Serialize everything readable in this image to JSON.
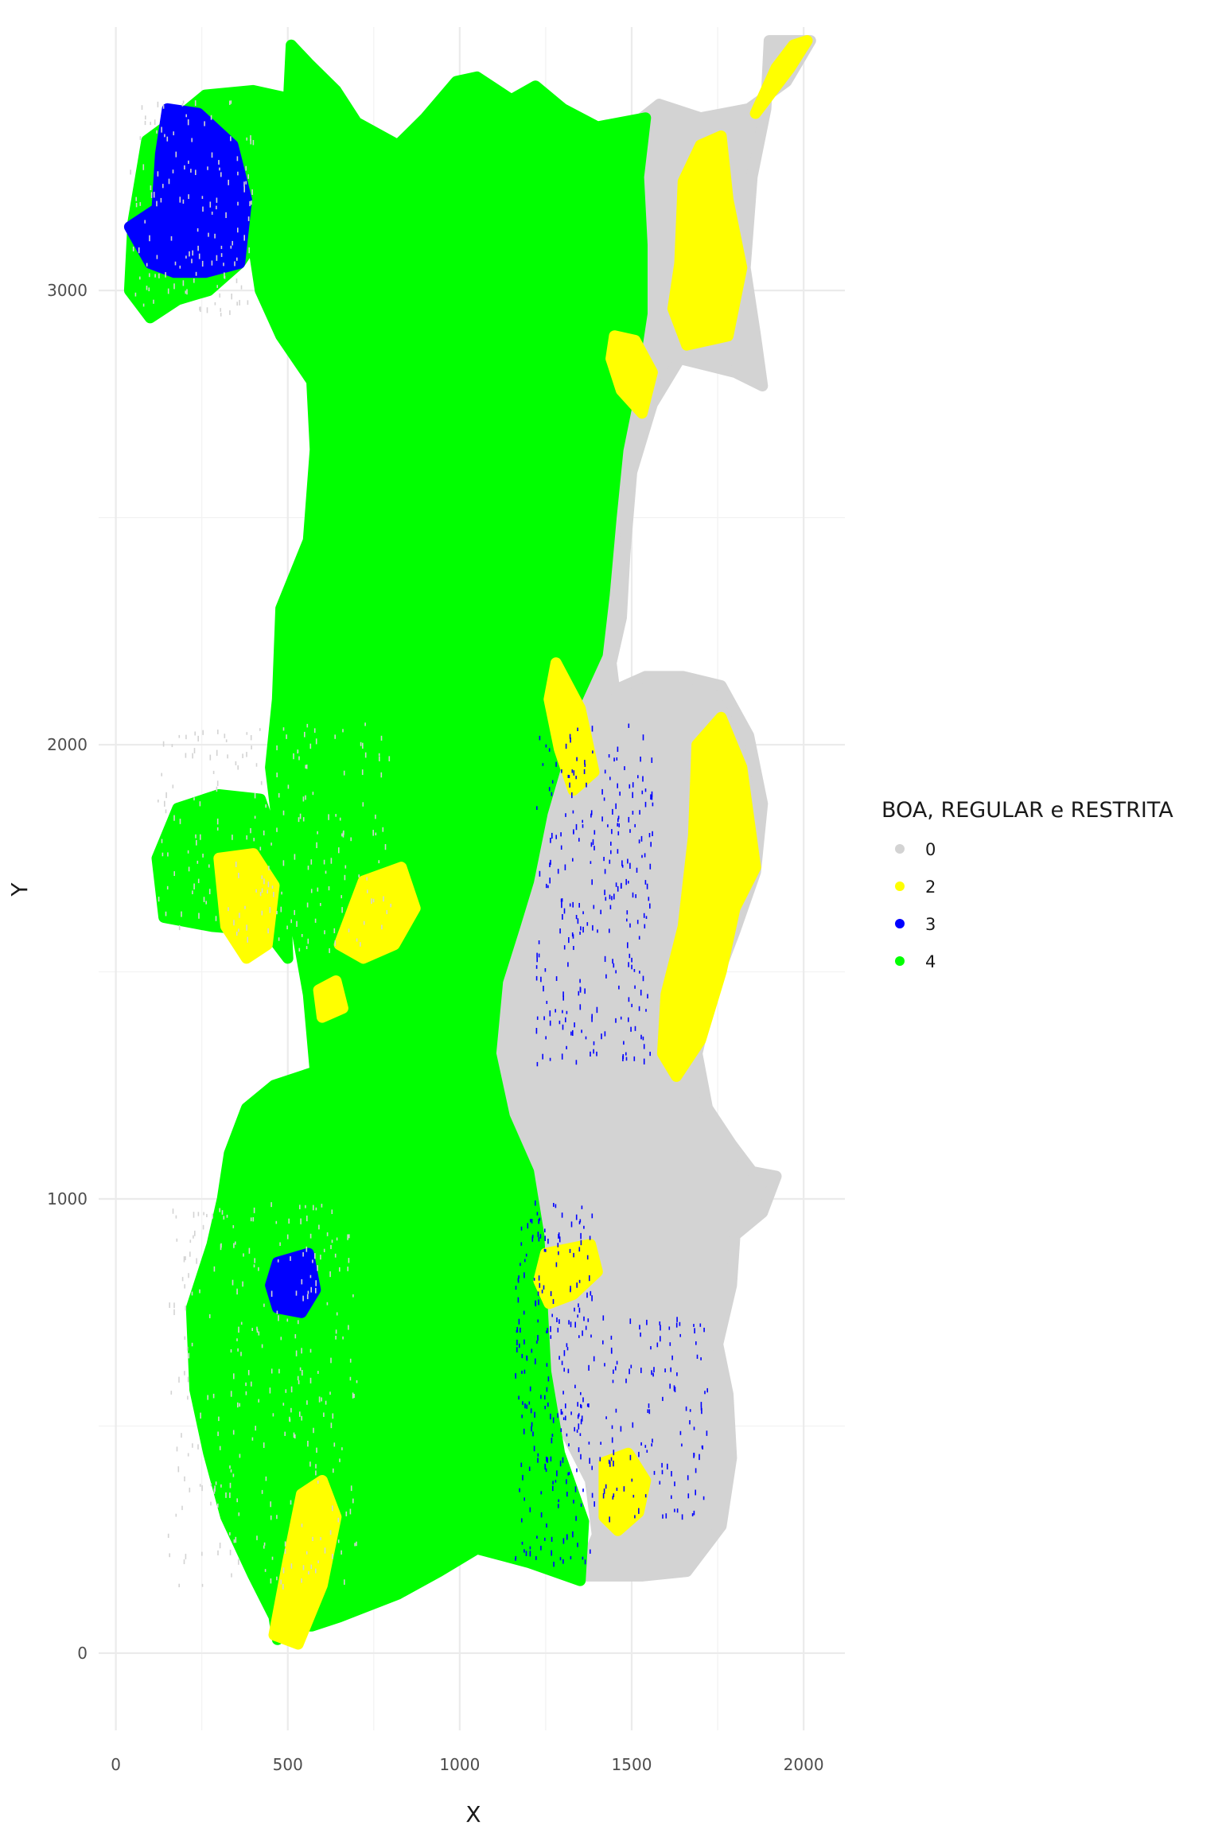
{
  "chart_data": {
    "type": "scatter",
    "title": "",
    "xlabel": "X",
    "ylabel": "Y",
    "xlim": [
      -50,
      2120
    ],
    "ylim": [
      -170,
      3580
    ],
    "x_ticks": [
      0,
      500,
      1000,
      1500,
      2000
    ],
    "y_ticks": [
      0,
      1000,
      2000,
      3000
    ],
    "grid": true,
    "legend": {
      "title": "BOA, REGULAR e RESTRITA",
      "position": "right",
      "entries": [
        {
          "label": "0",
          "color": "#d3d3d3"
        },
        {
          "label": "2",
          "color": "#ffff00"
        },
        {
          "label": "3",
          "color": "#0000ff"
        },
        {
          "label": "4",
          "color": "#00ff00"
        }
      ]
    },
    "regions": [
      {
        "class": "0",
        "name": "region-0-east",
        "points": [
          [
            1530,
            3380
          ],
          [
            1580,
            3410
          ],
          [
            1700,
            3380
          ],
          [
            1840,
            3400
          ],
          [
            1950,
            3460
          ],
          [
            2020,
            3550
          ],
          [
            1900,
            3550
          ],
          [
            1890,
            3400
          ],
          [
            1850,
            3250
          ],
          [
            1830,
            3050
          ],
          [
            1860,
            2900
          ],
          [
            1880,
            2790
          ],
          [
            1800,
            2820
          ],
          [
            1640,
            2850
          ],
          [
            1560,
            2750
          ],
          [
            1500,
            2600
          ],
          [
            1480,
            2420
          ],
          [
            1470,
            2280
          ],
          [
            1440,
            2180
          ],
          [
            1450,
            2120
          ],
          [
            1540,
            2150
          ],
          [
            1650,
            2150
          ],
          [
            1760,
            2130
          ],
          [
            1840,
            2020
          ],
          [
            1880,
            1870
          ],
          [
            1860,
            1720
          ],
          [
            1800,
            1590
          ],
          [
            1730,
            1450
          ],
          [
            1690,
            1320
          ],
          [
            1720,
            1200
          ],
          [
            1790,
            1120
          ],
          [
            1850,
            1060
          ],
          [
            1920,
            1050
          ],
          [
            1880,
            970
          ],
          [
            1800,
            920
          ],
          [
            1790,
            810
          ],
          [
            1750,
            680
          ],
          [
            1780,
            570
          ],
          [
            1790,
            430
          ],
          [
            1760,
            280
          ],
          [
            1660,
            180
          ],
          [
            1530,
            170
          ],
          [
            1420,
            170
          ],
          [
            1350,
            170
          ],
          [
            1400,
            260
          ],
          [
            1380,
            380
          ],
          [
            1300,
            500
          ],
          [
            1240,
            660
          ],
          [
            1200,
            800
          ],
          [
            1150,
            960
          ],
          [
            1080,
            1130
          ],
          [
            1060,
            1300
          ],
          [
            1100,
            1440
          ],
          [
            1140,
            1600
          ],
          [
            1200,
            1780
          ],
          [
            1250,
            1950
          ],
          [
            1290,
            2050
          ],
          [
            1380,
            2200
          ],
          [
            1420,
            2450
          ],
          [
            1450,
            2600
          ],
          [
            1480,
            2760
          ],
          [
            1500,
            3000
          ],
          [
            1490,
            3200
          ]
        ]
      },
      {
        "class": "4",
        "name": "region-4-main",
        "points": [
          [
            510,
            3540
          ],
          [
            560,
            3500
          ],
          [
            640,
            3440
          ],
          [
            700,
            3370
          ],
          [
            820,
            3320
          ],
          [
            900,
            3380
          ],
          [
            990,
            3460
          ],
          [
            1050,
            3470
          ],
          [
            1150,
            3420
          ],
          [
            1220,
            3450
          ],
          [
            1300,
            3400
          ],
          [
            1400,
            3360
          ],
          [
            1540,
            3380
          ],
          [
            1520,
            3250
          ],
          [
            1530,
            3100
          ],
          [
            1530,
            2950
          ],
          [
            1500,
            2800
          ],
          [
            1460,
            2650
          ],
          [
            1440,
            2500
          ],
          [
            1420,
            2330
          ],
          [
            1400,
            2200
          ],
          [
            1340,
            2100
          ],
          [
            1290,
            1980
          ],
          [
            1240,
            1850
          ],
          [
            1200,
            1700
          ],
          [
            1160,
            1600
          ],
          [
            1110,
            1480
          ],
          [
            1090,
            1320
          ],
          [
            1130,
            1180
          ],
          [
            1200,
            1060
          ],
          [
            1230,
            920
          ],
          [
            1240,
            760
          ],
          [
            1250,
            620
          ],
          [
            1290,
            440
          ],
          [
            1360,
            290
          ],
          [
            1350,
            160
          ],
          [
            1200,
            200
          ],
          [
            1050,
            230
          ],
          [
            940,
            180
          ],
          [
            820,
            130
          ],
          [
            650,
            80
          ],
          [
            570,
            60
          ],
          [
            500,
            60
          ],
          [
            470,
            30
          ],
          [
            460,
            80
          ],
          [
            400,
            170
          ],
          [
            320,
            300
          ],
          [
            270,
            440
          ],
          [
            230,
            580
          ],
          [
            220,
            760
          ],
          [
            280,
            900
          ],
          [
            310,
            1000
          ],
          [
            330,
            1100
          ],
          [
            380,
            1200
          ],
          [
            460,
            1250
          ],
          [
            580,
            1280
          ],
          [
            560,
            1450
          ],
          [
            520,
            1620
          ],
          [
            480,
            1750
          ],
          [
            420,
            1880
          ],
          [
            300,
            1890
          ],
          [
            180,
            1860
          ],
          [
            120,
            1750
          ],
          [
            140,
            1620
          ],
          [
            280,
            1600
          ],
          [
            440,
            1590
          ],
          [
            500,
            1530
          ],
          [
            490,
            1700
          ],
          [
            450,
            1950
          ],
          [
            470,
            2100
          ],
          [
            480,
            2300
          ],
          [
            560,
            2450
          ],
          [
            580,
            2650
          ],
          [
            570,
            2800
          ],
          [
            480,
            2900
          ],
          [
            420,
            3000
          ],
          [
            400,
            3100
          ],
          [
            470,
            3250
          ],
          [
            500,
            3380
          ]
        ]
      },
      {
        "class": "4",
        "name": "region-4-northwest",
        "points": [
          [
            50,
            3150
          ],
          [
            40,
            3000
          ],
          [
            100,
            2940
          ],
          [
            180,
            2980
          ],
          [
            270,
            3000
          ],
          [
            360,
            3060
          ],
          [
            440,
            3150
          ],
          [
            500,
            3300
          ],
          [
            520,
            3420
          ],
          [
            400,
            3440
          ],
          [
            260,
            3430
          ],
          [
            180,
            3380
          ],
          [
            90,
            3330
          ]
        ]
      },
      {
        "class": "3",
        "name": "region-3-northwest",
        "points": [
          [
            150,
            3400
          ],
          [
            240,
            3390
          ],
          [
            340,
            3320
          ],
          [
            380,
            3200
          ],
          [
            360,
            3060
          ],
          [
            260,
            3040
          ],
          [
            170,
            3040
          ],
          [
            100,
            3060
          ],
          [
            40,
            3140
          ],
          [
            120,
            3180
          ],
          [
            130,
            3300
          ]
        ]
      },
      {
        "class": "3",
        "name": "region-3-south",
        "points": [
          [
            470,
            860
          ],
          [
            560,
            880
          ],
          [
            580,
            800
          ],
          [
            540,
            750
          ],
          [
            470,
            760
          ],
          [
            450,
            810
          ]
        ]
      },
      {
        "class": "2",
        "name": "region-2-northeast",
        "points": [
          [
            1650,
            3240
          ],
          [
            1700,
            3320
          ],
          [
            1760,
            3340
          ],
          [
            1780,
            3200
          ],
          [
            1820,
            3050
          ],
          [
            1780,
            2900
          ],
          [
            1660,
            2880
          ],
          [
            1620,
            2960
          ],
          [
            1640,
            3060
          ]
        ]
      },
      {
        "class": "2",
        "name": "region-2-northeast-tip",
        "points": [
          [
            1860,
            3390
          ],
          [
            1920,
            3490
          ],
          [
            1970,
            3540
          ],
          [
            2010,
            3550
          ],
          [
            1960,
            3490
          ],
          [
            1880,
            3410
          ]
        ]
      },
      {
        "class": "2",
        "name": "region-2-east-coast",
        "points": [
          [
            1690,
            2000
          ],
          [
            1760,
            2060
          ],
          [
            1820,
            1950
          ],
          [
            1860,
            1730
          ],
          [
            1800,
            1640
          ],
          [
            1760,
            1500
          ],
          [
            1700,
            1350
          ],
          [
            1630,
            1270
          ],
          [
            1590,
            1320
          ],
          [
            1600,
            1450
          ],
          [
            1650,
            1600
          ],
          [
            1680,
            1800
          ]
        ]
      },
      {
        "class": "2",
        "name": "region-2-center",
        "points": [
          [
            1280,
            2180
          ],
          [
            1350,
            2080
          ],
          [
            1390,
            1940
          ],
          [
            1330,
            1900
          ],
          [
            1290,
            1990
          ],
          [
            1260,
            2100
          ]
        ]
      },
      {
        "class": "2",
        "name": "region-2-north-coast",
        "points": [
          [
            1450,
            2900
          ],
          [
            1510,
            2890
          ],
          [
            1560,
            2820
          ],
          [
            1530,
            2730
          ],
          [
            1470,
            2780
          ],
          [
            1440,
            2850
          ]
        ]
      },
      {
        "class": "2",
        "name": "region-2-west-island",
        "points": [
          [
            300,
            1750
          ],
          [
            400,
            1760
          ],
          [
            460,
            1690
          ],
          [
            440,
            1560
          ],
          [
            380,
            1530
          ],
          [
            320,
            1600
          ]
        ]
      },
      {
        "class": "2",
        "name": "region-2-west-mid",
        "points": [
          [
            720,
            1700
          ],
          [
            830,
            1730
          ],
          [
            870,
            1640
          ],
          [
            810,
            1560
          ],
          [
            720,
            1530
          ],
          [
            650,
            1560
          ]
        ]
      },
      {
        "class": "2",
        "name": "region-2-west-small",
        "points": [
          [
            590,
            1460
          ],
          [
            640,
            1480
          ],
          [
            660,
            1420
          ],
          [
            600,
            1400
          ]
        ]
      },
      {
        "class": "2",
        "name": "region-2-south-center",
        "points": [
          [
            1250,
            880
          ],
          [
            1380,
            900
          ],
          [
            1400,
            840
          ],
          [
            1330,
            790
          ],
          [
            1260,
            770
          ],
          [
            1230,
            820
          ]
        ]
      },
      {
        "class": "2",
        "name": "region-2-south-east",
        "points": [
          [
            1420,
            420
          ],
          [
            1490,
            440
          ],
          [
            1540,
            380
          ],
          [
            1520,
            310
          ],
          [
            1460,
            270
          ],
          [
            1420,
            300
          ]
        ]
      },
      {
        "class": "2",
        "name": "region-2-south-tip",
        "points": [
          [
            460,
            40
          ],
          [
            530,
            20
          ],
          [
            600,
            150
          ],
          [
            640,
            300
          ],
          [
            600,
            380
          ],
          [
            540,
            350
          ],
          [
            500,
            200
          ]
        ]
      }
    ],
    "scatter": [
      {
        "class": "3",
        "name": "scatter-3-east-mid",
        "x_range": [
          1220,
          1560
        ],
        "y_range": [
          1300,
          2050
        ],
        "count": 260
      },
      {
        "class": "3",
        "name": "scatter-3-east-south",
        "x_range": [
          1160,
          1390
        ],
        "y_range": [
          200,
          1000
        ],
        "count": 240
      },
      {
        "class": "3",
        "name": "scatter-3-east-lower",
        "x_range": [
          1400,
          1720
        ],
        "y_range": [
          300,
          750
        ],
        "count": 120
      },
      {
        "class": "0",
        "name": "scatter-0-west",
        "x_range": [
          150,
          700
        ],
        "y_range": [
          150,
          1000
        ],
        "count": 280
      },
      {
        "class": "0",
        "name": "scatter-0-west-mid",
        "x_range": [
          120,
          800
        ],
        "y_range": [
          1550,
          2050
        ],
        "count": 200
      },
      {
        "class": "0",
        "name": "scatter-0-northwest",
        "x_range": [
          40,
          400
        ],
        "y_range": [
          2950,
          3420
        ],
        "count": 140
      }
    ]
  }
}
